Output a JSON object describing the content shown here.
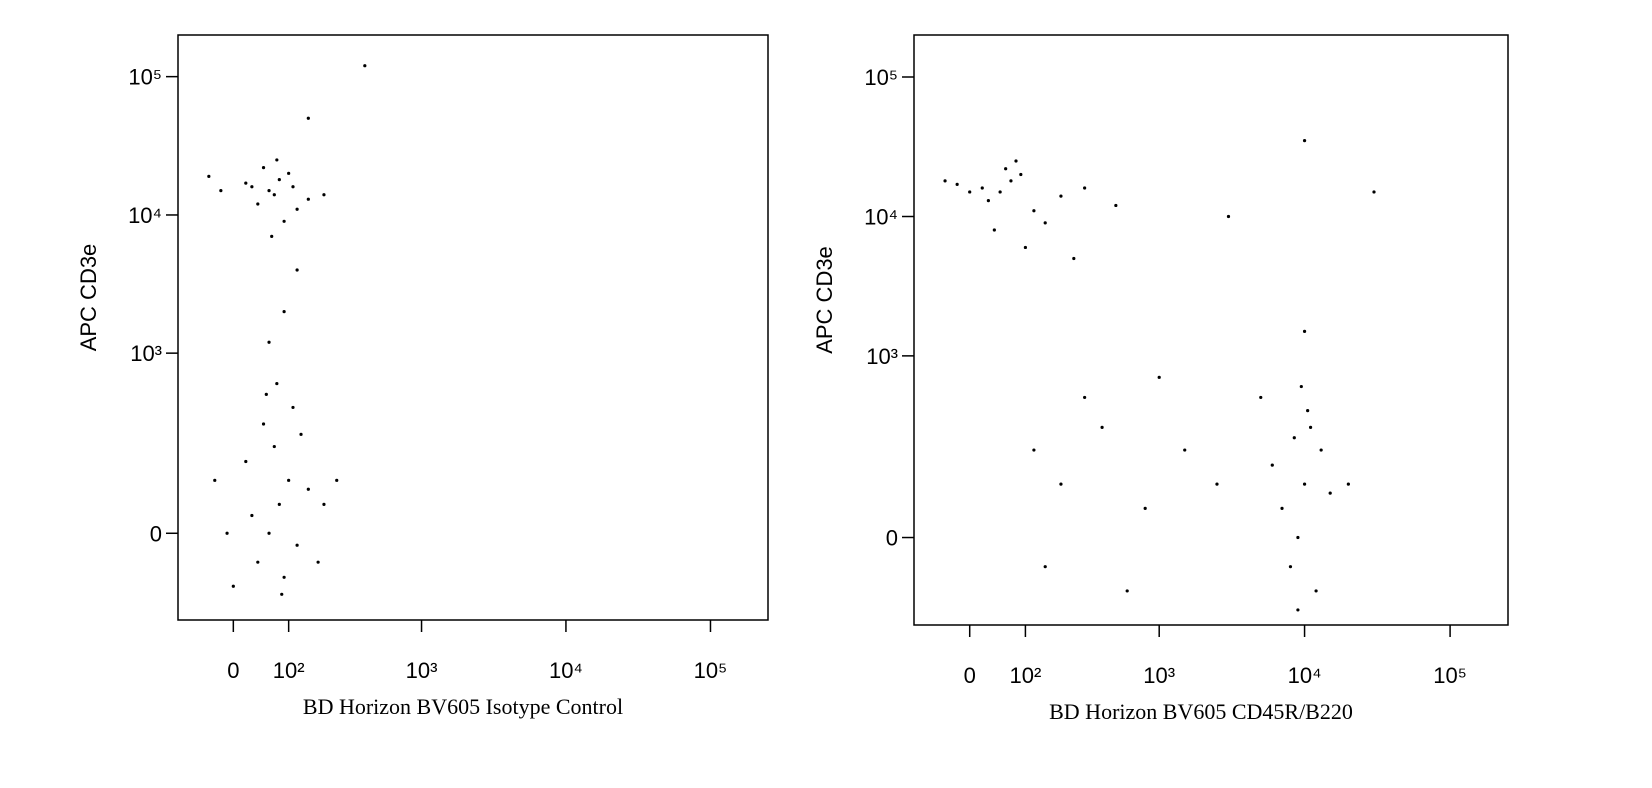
{
  "chart_data": [
    {
      "type": "scatter",
      "xlabel": "BD Horizon BV605 Isotype Control",
      "ylabel": "APC CD3e",
      "xscale": "biexponential",
      "yscale": "biexponential",
      "color": "#000000",
      "xlim": [
        -100,
        250000
      ],
      "ylim": [
        -200,
        200000
      ],
      "xticks": [
        0,
        {
          "value": 100,
          "label": "10²"
        },
        {
          "value": 1000,
          "label": "10³"
        },
        {
          "value": 10000,
          "label": "10⁴"
        },
        {
          "value": 100000,
          "label": "10⁵"
        }
      ],
      "yticks": [
        0,
        {
          "value": 1000,
          "label": "10³"
        },
        {
          "value": 10000,
          "label": "10⁴"
        },
        {
          "value": 100000,
          "label": "10⁵"
        }
      ],
      "x": [
        60,
        80,
        40,
        100,
        70,
        30,
        120,
        50,
        90,
        20,
        150,
        -20,
        65,
        110,
        75,
        200,
        -40,
        60,
        80,
        40,
        100,
        70,
        30,
        120,
        50,
        90,
        20,
        150,
        -10,
        0,
        110,
        75,
        200,
        -30,
        130,
        85,
        55,
        180,
        250,
        90,
        60,
        120,
        400,
        150
      ],
      "y": [
        15000,
        18000,
        12000,
        20000,
        14000,
        16000,
        11000,
        22000,
        9000,
        17000,
        13000,
        15000,
        7000,
        16000,
        25000,
        14000,
        19000,
        0,
        50,
        -50,
        100,
        200,
        30,
        -20,
        300,
        -80,
        150,
        80,
        0,
        -100,
        400,
        600,
        50,
        100,
        250,
        -120,
        500,
        -50,
        100,
        2000,
        1200,
        4000,
        120000,
        50000
      ]
    },
    {
      "type": "scatter",
      "xlabel": "BD Horizon BV605 CD45R/B220",
      "ylabel": "APC CD3e",
      "xscale": "biexponential",
      "yscale": "biexponential",
      "color": "#000000",
      "xlim": [
        -100,
        250000
      ],
      "ylim": [
        -200,
        200000
      ],
      "xticks": [
        0,
        {
          "value": 100,
          "label": "10²"
        },
        {
          "value": 1000,
          "label": "10³"
        },
        {
          "value": 10000,
          "label": "10⁴"
        },
        {
          "value": 100000,
          "label": "10⁵"
        }
      ],
      "yticks": [
        0,
        {
          "value": 1000,
          "label": "10³"
        },
        {
          "value": 10000,
          "label": "10⁴"
        },
        {
          "value": 100000,
          "label": "10⁵"
        }
      ],
      "x": [
        50,
        70,
        30,
        90,
        20,
        0,
        120,
        60,
        150,
        -20,
        200,
        40,
        100,
        300,
        500,
        80,
        -40,
        250,
        200,
        400,
        800,
        150,
        1500,
        300,
        600,
        1000,
        120,
        2500,
        9000,
        10000,
        8000,
        11000,
        9500,
        7000,
        12000,
        10000,
        13000,
        6000,
        9000,
        15000,
        10500,
        8500,
        20000,
        3000,
        30000,
        10000,
        5000
      ],
      "y": [
        15000,
        18000,
        13000,
        20000,
        16000,
        15000,
        11000,
        22000,
        9000,
        17000,
        14000,
        8000,
        6000,
        16000,
        12000,
        25000,
        18000,
        5000,
        100,
        300,
        50,
        -50,
        200,
        500,
        -100,
        700,
        200,
        100,
        0,
        100,
        -50,
        300,
        600,
        50,
        -100,
        1500,
        200,
        150,
        -150,
        80,
        400,
        250,
        100,
        10000,
        15000,
        35000,
        500
      ]
    }
  ]
}
